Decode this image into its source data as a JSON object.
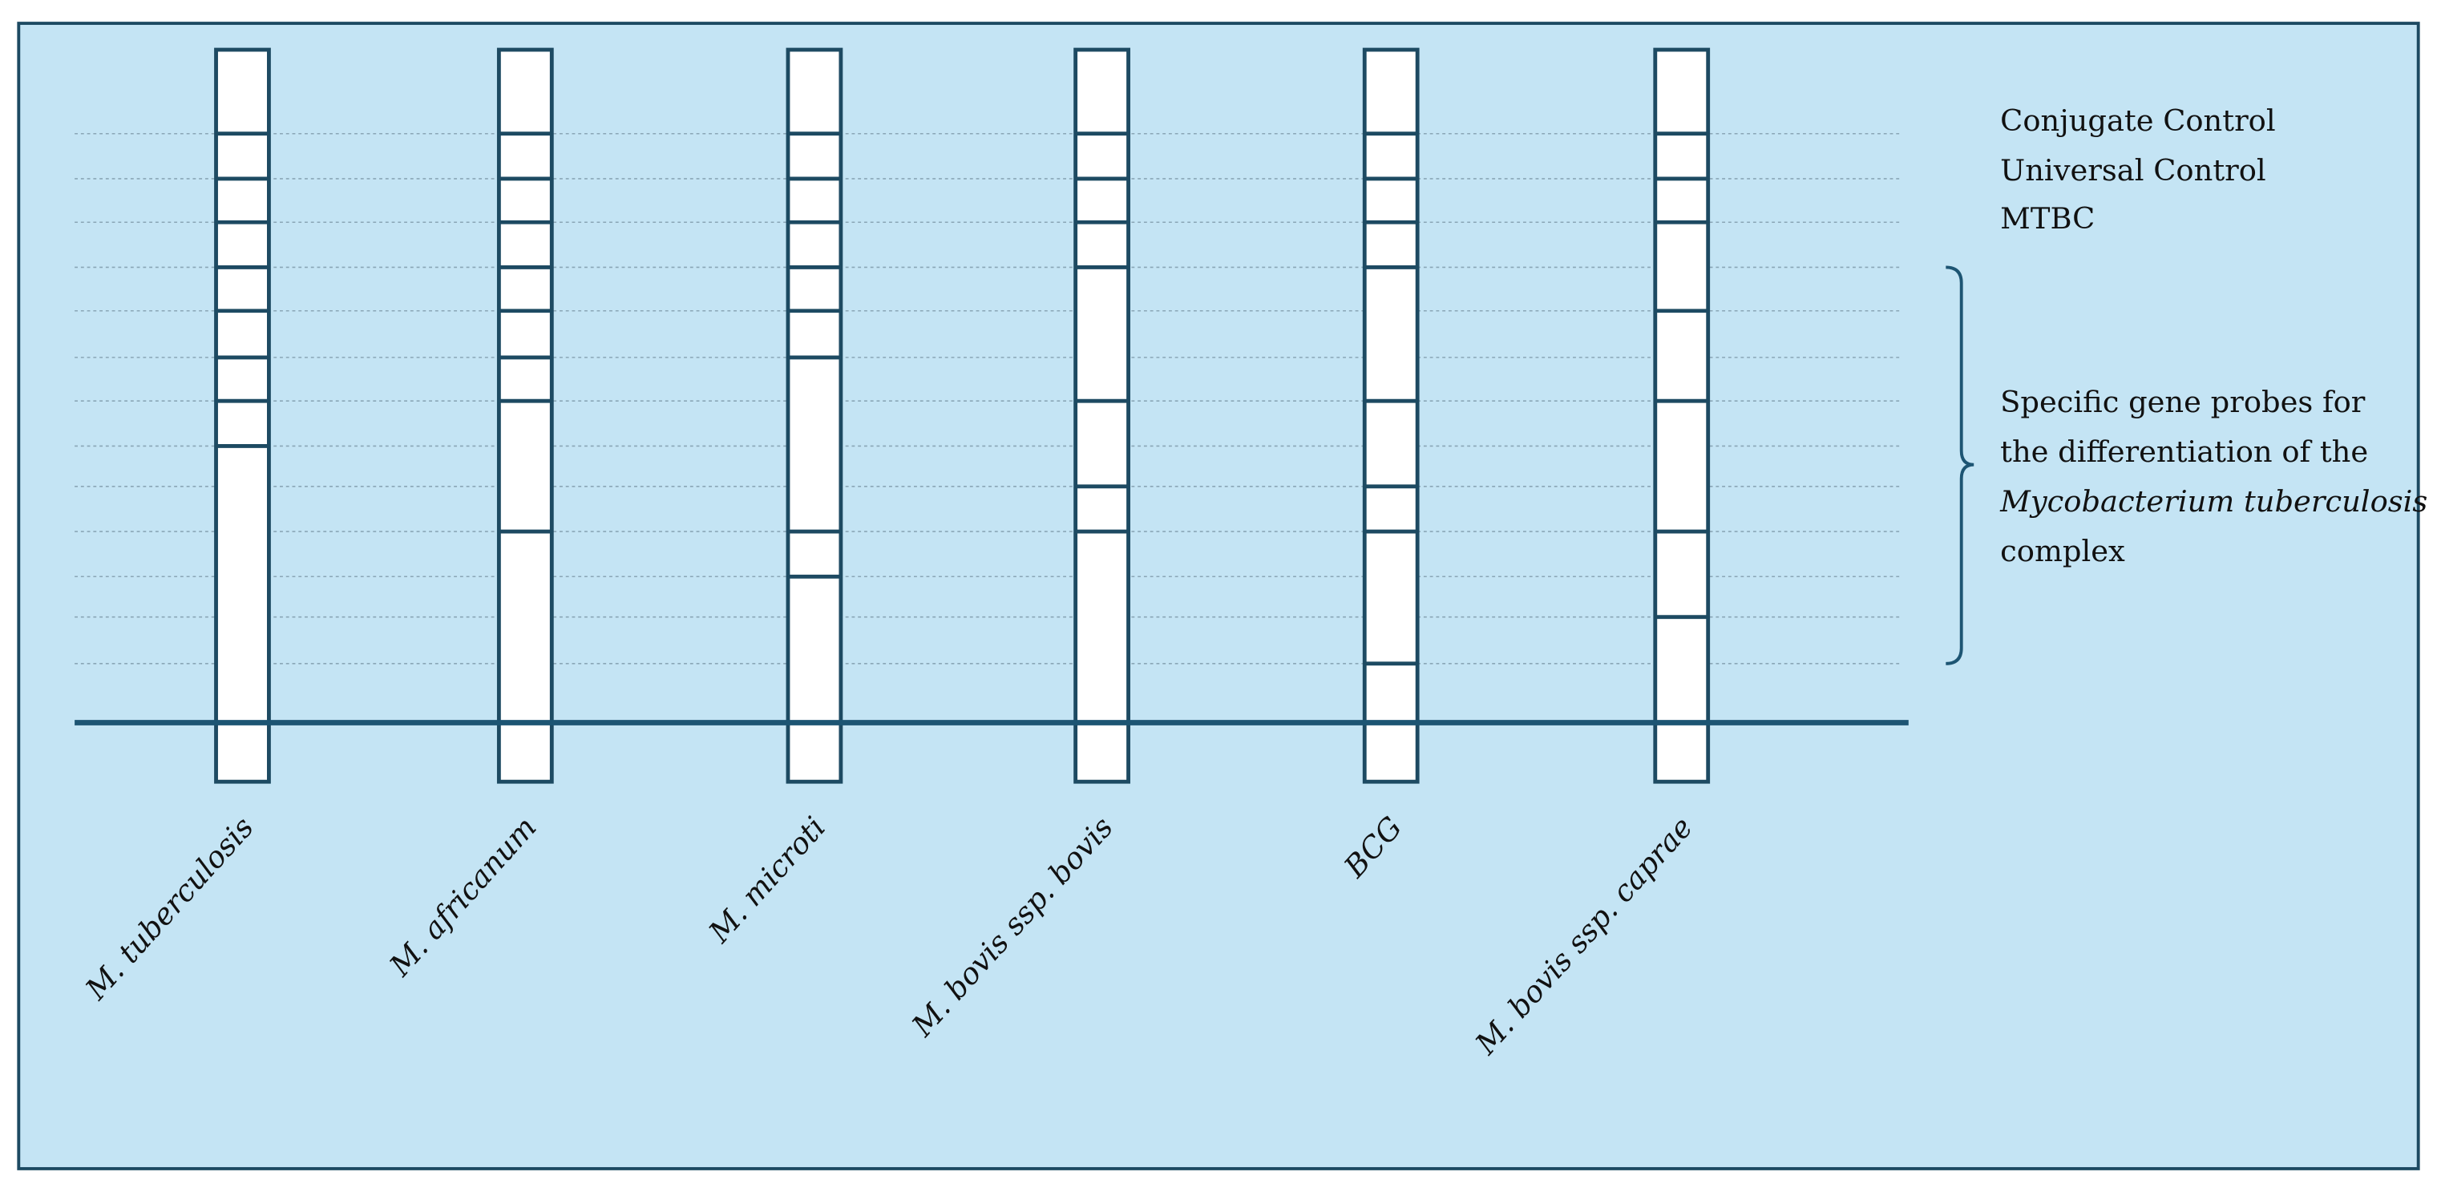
{
  "strips": [
    "M. tuberculosis",
    "M. africanum",
    "M. microti",
    "M. bovis ssp. bovis",
    "BCG",
    "M. bovis ssp. caprae"
  ],
  "controls": [
    "Conjugate Control",
    "Universal Control",
    "MTBC"
  ],
  "probe_note": [
    "Specific gene probes for",
    "the differentiation of the",
    "Mycobacterium tuberculosis",
    "complex"
  ]
}
